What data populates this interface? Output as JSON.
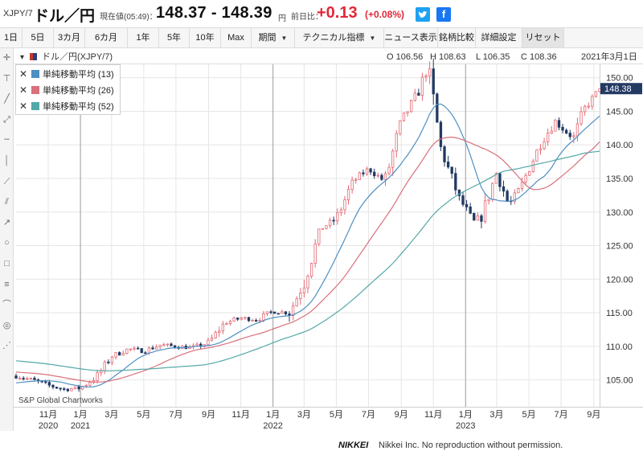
{
  "header": {
    "symbol": "XJPY/7",
    "name": "ドル／円",
    "price_label": "現在値(05:49)：",
    "price": "148.37 - 148.39",
    "price_unit": "円",
    "change_label": "前日比：",
    "change": "+0.13",
    "change_pct": "(+0.08%)",
    "twitter_icon": "twitter-icon",
    "facebook_icon": "facebook-icon"
  },
  "toolbar": {
    "items": [
      {
        "label": "1日"
      },
      {
        "label": "5日"
      },
      {
        "label": "3カ月"
      },
      {
        "label": "6カ月"
      },
      {
        "label": "1年"
      },
      {
        "label": "5年"
      },
      {
        "label": "10年"
      },
      {
        "label": "Max"
      },
      {
        "label": "期間",
        "dropdown": true
      },
      {
        "label": "テクニカル指標",
        "dropdown": true
      },
      {
        "label": "ニュース表示"
      },
      {
        "label": "銘柄比較"
      },
      {
        "label": "詳細設定"
      },
      {
        "label": "リセット"
      }
    ]
  },
  "left_tools": [
    "crosshair-icon",
    "text-annotation-icon",
    "trend-line-icon",
    "ray-icon",
    "horizontal-line-icon",
    "vertical-line-icon",
    "extended-line-icon",
    "channel-icon",
    "arrow-line-icon",
    "circle-icon",
    "rectangle-icon",
    "fibonacci-icon",
    "arc-icon",
    "spiral-icon",
    "gann-fan-icon"
  ],
  "ohlc_bar": {
    "title": "ドル／円(XJPY/7)",
    "open": "O 106.56",
    "high": "H 108.63",
    "low": "L 106.35",
    "close": "C 108.36",
    "date": "2021年3月1日"
  },
  "legend": [
    {
      "label": "単純移動平均 (13)",
      "color": "#4e8fc2"
    },
    {
      "label": "単純移動平均 (26)",
      "color": "#d9707b"
    },
    {
      "label": "単純移動平均 (52)",
      "color": "#55a8a8"
    }
  ],
  "watermark": "S&P Global Chartworks",
  "last_price_tag": "148.38",
  "footer": {
    "brand": "NIKKEI",
    "note": "Nikkei Inc. No reproduction without permission."
  },
  "colors": {
    "up": "#e36a74",
    "down": "#233a63",
    "sma13": "#4e8fc2",
    "sma26": "#d9707b",
    "sma52": "#55a8a8",
    "tag": "#233a63"
  },
  "chart_data": {
    "type": "candlestick",
    "interval": "weekly",
    "ylim": [
      101,
      152
    ],
    "ytick_labels": [
      "105.00",
      "110.00",
      "115.00",
      "120.00",
      "125.00",
      "130.00",
      "135.00",
      "140.00",
      "145.00",
      "150.00"
    ],
    "yticks": [
      105,
      110,
      115,
      120,
      125,
      130,
      135,
      140,
      145,
      150
    ],
    "x_start": "2020-09-01",
    "x_end": "2023-09-12",
    "month_ticks": [
      {
        "date": "2020-11-01",
        "label": "11月",
        "year": "2020"
      },
      {
        "date": "2021-01-01",
        "label": "1月",
        "year": "2021",
        "year_start": true
      },
      {
        "date": "2021-03-01",
        "label": "3月"
      },
      {
        "date": "2021-05-01",
        "label": "5月"
      },
      {
        "date": "2021-07-01",
        "label": "7月"
      },
      {
        "date": "2021-09-01",
        "label": "9月"
      },
      {
        "date": "2021-11-01",
        "label": "11月"
      },
      {
        "date": "2022-01-01",
        "label": "1月",
        "year": "2022",
        "year_start": true
      },
      {
        "date": "2022-03-01",
        "label": "3月"
      },
      {
        "date": "2022-05-01",
        "label": "5月"
      },
      {
        "date": "2022-07-01",
        "label": "7月"
      },
      {
        "date": "2022-09-01",
        "label": "9月"
      },
      {
        "date": "2022-11-01",
        "label": "11月"
      },
      {
        "date": "2023-01-01",
        "label": "1月",
        "year": "2023",
        "year_start": true
      },
      {
        "date": "2023-03-01",
        "label": "3月"
      },
      {
        "date": "2023-05-01",
        "label": "5月"
      },
      {
        "date": "2023-07-01",
        "label": "7月"
      },
      {
        "date": "2023-09-01",
        "label": "9月"
      }
    ],
    "close_anchors": [
      [
        "2020-09-01",
        105.6
      ],
      [
        "2020-10-01",
        105.0
      ],
      [
        "2020-11-01",
        104.2
      ],
      [
        "2020-12-01",
        103.6
      ],
      [
        "2021-01-01",
        103.8
      ],
      [
        "2021-02-01",
        105.5
      ],
      [
        "2021-03-01",
        108.5
      ],
      [
        "2021-04-01",
        109.6
      ],
      [
        "2021-05-01",
        109.3
      ],
      [
        "2021-06-01",
        110.2
      ],
      [
        "2021-07-01",
        110.0
      ],
      [
        "2021-08-01",
        109.8
      ],
      [
        "2021-09-01",
        110.5
      ],
      [
        "2021-10-01",
        113.5
      ],
      [
        "2021-11-01",
        114.2
      ],
      [
        "2021-12-01",
        114.0
      ],
      [
        "2022-01-01",
        115.2
      ],
      [
        "2022-02-01",
        115.0
      ],
      [
        "2022-03-01",
        119.5
      ],
      [
        "2022-04-01",
        127.5
      ],
      [
        "2022-05-01",
        129.0
      ],
      [
        "2022-06-01",
        134.5
      ],
      [
        "2022-07-01",
        136.5
      ],
      [
        "2022-08-01",
        134.5
      ],
      [
        "2022-09-01",
        143.5
      ],
      [
        "2022-10-01",
        147.5
      ],
      [
        "2022-10-21",
        151.5
      ],
      [
        "2022-11-01",
        146.5
      ],
      [
        "2022-11-15",
        139.5
      ],
      [
        "2022-12-01",
        136.0
      ],
      [
        "2022-12-20",
        132.0
      ],
      [
        "2023-01-01",
        130.5
      ],
      [
        "2023-01-16",
        128.5
      ],
      [
        "2023-02-01",
        129.5
      ],
      [
        "2023-03-01",
        136.0
      ],
      [
        "2023-03-24",
        131.0
      ],
      [
        "2023-04-15",
        133.5
      ],
      [
        "2023-05-01",
        136.5
      ],
      [
        "2023-05-25",
        140.5
      ],
      [
        "2023-06-20",
        143.5
      ],
      [
        "2023-07-10",
        142.0
      ],
      [
        "2023-07-25",
        141.0
      ],
      [
        "2023-08-15",
        145.5
      ],
      [
        "2023-09-05",
        147.5
      ],
      [
        "2023-09-12",
        148.38
      ]
    ],
    "sma_start": {
      "sma13": 104.5,
      "sma26": 106.2,
      "sma52": 107.9
    },
    "series": [
      {
        "name": "単純移動平均 (13)",
        "period": 13
      },
      {
        "name": "単純移動平均 (26)",
        "period": 26
      },
      {
        "name": "単純移動平均 (52)",
        "period": 52
      }
    ],
    "last_price": 148.38
  }
}
